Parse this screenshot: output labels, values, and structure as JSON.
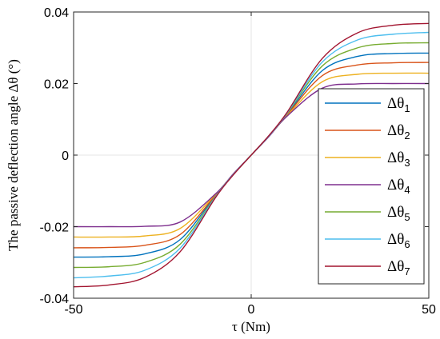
{
  "chart_data": {
    "type": "line",
    "xlabel": "τ (Nm)",
    "ylabel": "The passive deflection angle Δθ (°)",
    "xlim": [
      -50,
      50
    ],
    "ylim": [
      -0.04,
      0.04
    ],
    "xticks": [
      -50,
      0,
      50
    ],
    "xtick_labels": [
      "-50",
      "0",
      "50"
    ],
    "yticks": [
      -0.04,
      -0.02,
      0,
      0.02,
      0.04
    ],
    "ytick_labels": [
      "-0.04",
      "-0.02",
      "0",
      "0.02",
      "0.04"
    ],
    "grid": "zero-lines",
    "legend_position": "bottom-right",
    "x": [
      -50,
      -40,
      -30,
      -20,
      -10,
      -5,
      0,
      5,
      10,
      20,
      30,
      40,
      50
    ],
    "series": [
      {
        "name": "Δθ1",
        "color": "#0072BD",
        "values": [
          -0.0285,
          -0.0284,
          -0.0276,
          -0.0236,
          -0.0112,
          -0.0053,
          0,
          0.0053,
          0.0112,
          0.0236,
          0.0276,
          0.0284,
          0.0285
        ]
      },
      {
        "name": "Δθ2",
        "color": "#D95319",
        "values": [
          -0.0259,
          -0.0258,
          -0.0252,
          -0.0222,
          -0.0111,
          -0.0053,
          0,
          0.0053,
          0.0111,
          0.0222,
          0.0252,
          0.0258,
          0.0259
        ]
      },
      {
        "name": "Δθ3",
        "color": "#EDB120",
        "values": [
          -0.0229,
          -0.0229,
          -0.0226,
          -0.0205,
          -0.0109,
          -0.0053,
          0,
          0.0053,
          0.0109,
          0.0205,
          0.0226,
          0.0229,
          0.0229
        ]
      },
      {
        "name": "Δθ4",
        "color": "#7E2F8E",
        "values": [
          -0.02,
          -0.02,
          -0.0199,
          -0.0187,
          -0.0108,
          -0.0052,
          0,
          0.0052,
          0.0108,
          0.0187,
          0.0199,
          0.02,
          0.02
        ]
      },
      {
        "name": "Δθ5",
        "color": "#77AC30",
        "values": [
          -0.0314,
          -0.0312,
          -0.03,
          -0.0249,
          -0.0115,
          -0.0054,
          0,
          0.0054,
          0.0115,
          0.0249,
          0.03,
          0.0312,
          0.0314
        ]
      },
      {
        "name": "Δθ6",
        "color": "#4DBEEE",
        "values": [
          -0.0343,
          -0.0338,
          -0.0322,
          -0.026,
          -0.0116,
          -0.0054,
          0,
          0.0054,
          0.0116,
          0.026,
          0.0322,
          0.0338,
          0.0343
        ]
      },
      {
        "name": "Δθ7",
        "color": "#A2142F",
        "values": [
          -0.0368,
          -0.0363,
          -0.0342,
          -0.027,
          -0.0118,
          -0.0055,
          0,
          0.0055,
          0.0118,
          0.027,
          0.0342,
          0.0363,
          0.0368
        ]
      }
    ]
  }
}
